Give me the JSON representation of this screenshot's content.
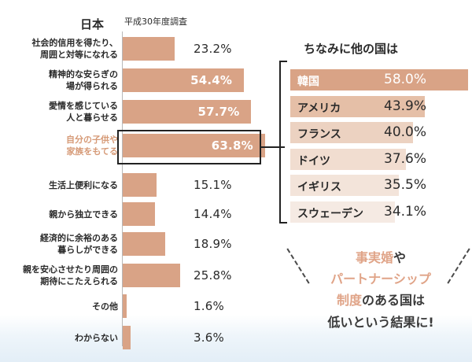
{
  "chart_data": [
    {
      "type": "bar",
      "orientation": "horizontal",
      "title": "日本",
      "subtitle": "平成30年度調査",
      "categories": [
        "社会的信用を得たり、\n周囲と対等になれる",
        "精神的な安らぎの\n場が得られる",
        "愛情を感じている\n人と暮らせる",
        "自分の子供や\n家族をもてる",
        "生活上便利になる",
        "親から独立できる",
        "経済的に余裕のある\n暮らしができる",
        "親を安心させたり周囲の\n期待にこたえられる",
        "その他",
        "わからない"
      ],
      "values": [
        23.2,
        54.4,
        57.7,
        63.8,
        15.1,
        14.4,
        18.9,
        25.8,
        1.6,
        3.6
      ],
      "value_labels": [
        "23.2%",
        "54.4%",
        "57.7%",
        "63.8%",
        "15.1%",
        "14.4%",
        "18.9%",
        "25.8%",
        "1.6%",
        "3.6%"
      ],
      "highlighted_index": 3,
      "xlim": [
        0,
        100
      ],
      "color": "#d9a386",
      "highlight_label_color": "#d69a77"
    },
    {
      "type": "bar",
      "orientation": "horizontal",
      "title": "ちなみに他の国は",
      "categories": [
        "韓国",
        "アメリカ",
        "フランス",
        "ドイツ",
        "イギリス",
        "スウェーデン"
      ],
      "values": [
        58.0,
        43.9,
        40.0,
        37.6,
        35.5,
        34.1
      ],
      "value_labels": [
        "58.0%",
        "43.9%",
        "40.0%",
        "37.6%",
        "35.5%",
        "34.1%"
      ],
      "xlim": [
        0,
        100
      ],
      "colors": [
        "#d9a386",
        "#e5bfa7",
        "#ecd2c1",
        "#f1ddd0",
        "#f3e4da",
        "#f5eae3"
      ]
    }
  ],
  "note": {
    "lines": [
      [
        {
          "text": "事実婚",
          "color": "pink"
        },
        {
          "text": "や",
          "color": "dark"
        }
      ],
      [
        {
          "text": "パートナーシップ",
          "color": "pink"
        }
      ],
      [
        {
          "text": "制度",
          "color": "pink"
        },
        {
          "text": "のある国は",
          "color": "dark"
        }
      ],
      [
        {
          "text": "低いという結果に!",
          "color": "dark"
        }
      ]
    ]
  },
  "colors": {
    "accent": "#d9a386",
    "highlight_text": "#d69a77",
    "note_pink": "#e0a488",
    "text_dark": "#2a2a2a"
  }
}
